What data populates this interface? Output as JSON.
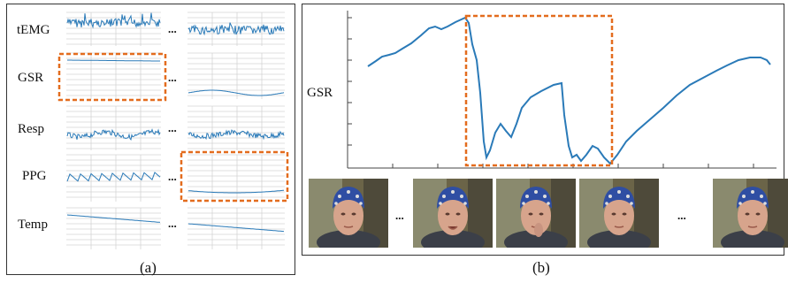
{
  "panel_a": {
    "caption": "(a)",
    "signals": [
      "tEMG",
      "GSR",
      "Resp",
      "PPG",
      "Temp"
    ],
    "ellipsis": "..."
  },
  "panel_b": {
    "caption": "(b)",
    "ylabel": "GSR",
    "ellipsis": "..."
  },
  "colors": {
    "signal_line": "#2a7ab8",
    "highlight_box": "#e36c1e",
    "grid": "#cfcfcf"
  }
}
